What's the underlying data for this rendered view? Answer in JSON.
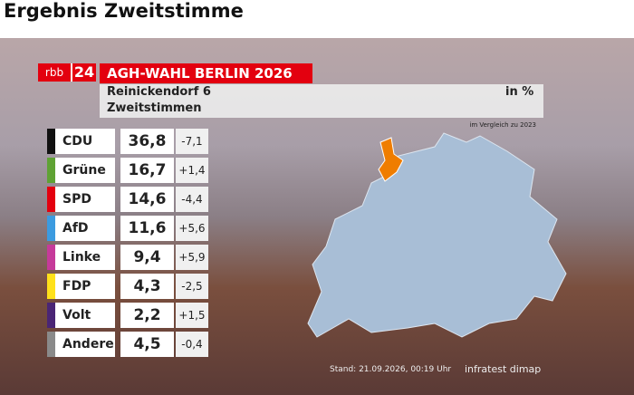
{
  "header": {
    "title": "Ergebnis Zweitstimme"
  },
  "graphic": {
    "logo": {
      "left": "rbb",
      "right": "24"
    },
    "banner": "AGH-WAHL BERLIN 2026",
    "district": "Reinickendorf 6",
    "subtitle": "Zweitstimmen",
    "unit": "in %",
    "comparison": "im Vergleich zu 2023",
    "rows": [
      {
        "party": "CDU",
        "color": "#111111",
        "value": "36,8",
        "change": "-7,1"
      },
      {
        "party": "Grüne",
        "color": "#5fa234",
        "value": "16,7",
        "change": "+1,4"
      },
      {
        "party": "SPD",
        "color": "#e3000f",
        "value": "14,6",
        "change": "-4,4"
      },
      {
        "party": "AfD",
        "color": "#3c9be0",
        "value": "11,6",
        "change": "+5,6"
      },
      {
        "party": "Linke",
        "color": "#c63a9a",
        "value": "9,4",
        "change": "+5,9"
      },
      {
        "party": "FDP",
        "color": "#ffe11a",
        "value": "4,3",
        "change": "-2,5"
      },
      {
        "party": "Volt",
        "color": "#4a2575",
        "value": "2,2",
        "change": "+1,5"
      },
      {
        "party": "Andere",
        "color": "#8a8a8a",
        "value": "4,5",
        "change": "-0,4"
      }
    ],
    "footer": {
      "stand": "Stand: 21.09.2026, 00:19 Uhr",
      "source": "infratest dimap"
    }
  }
}
